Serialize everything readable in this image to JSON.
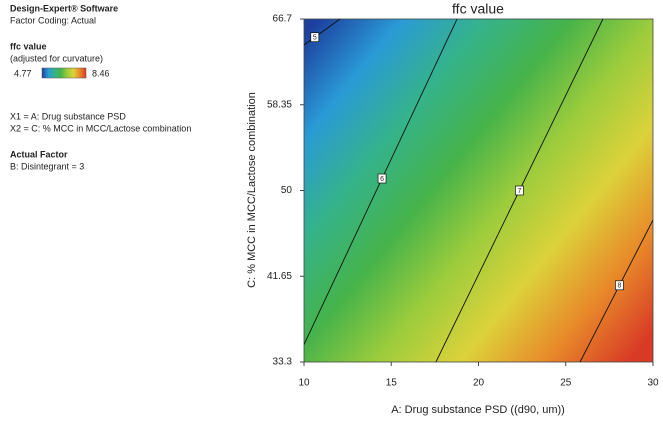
{
  "left_panel": {
    "software": "Design-Expert® Software",
    "coding": "Factor Coding: Actual",
    "response": "ffc value",
    "note": "(adjusted for curvature)",
    "x1": "X1 = A: Drug substance PSD",
    "x2": "X2 = C: % MCC in MCC/Lactose combination",
    "factor_heading": "Actual Factor",
    "factor": "B: Disintegrant = 3"
  },
  "chart_data": {
    "type": "contour",
    "title": "ffc value",
    "xlabel": "A: Drug substance PSD ((d90, um))",
    "ylabel": "C: % MCC in MCC/Lactose combination",
    "xlim": [
      10,
      30
    ],
    "xticks": [
      10,
      15,
      20,
      25,
      30
    ],
    "ylim": [
      33.3,
      66.7
    ],
    "yticks": [
      33.3,
      41.65,
      50,
      58.35,
      66.7
    ],
    "colorbar": {
      "min": 4.77,
      "max": 8.46,
      "colors": [
        "#1c3f9e",
        "#2a9ad6",
        "#35b38a",
        "#46b34a",
        "#9ccc3c",
        "#dcd23a",
        "#e88a2a",
        "#d83a26"
      ]
    },
    "contours": [
      {
        "level": 5,
        "x": [
          10,
          12.06
        ],
        "y": [
          64.17,
          66.7
        ]
      },
      {
        "level": 6,
        "x": [
          10,
          18.77
        ],
        "y": [
          35.0,
          66.7
        ]
      },
      {
        "level": 7,
        "x": [
          17.56,
          27.13
        ],
        "y": [
          33.3,
          66.7
        ]
      },
      {
        "level": 8,
        "x": [
          25.82,
          30
        ],
        "y": [
          33.3,
          47.13
        ]
      }
    ]
  }
}
